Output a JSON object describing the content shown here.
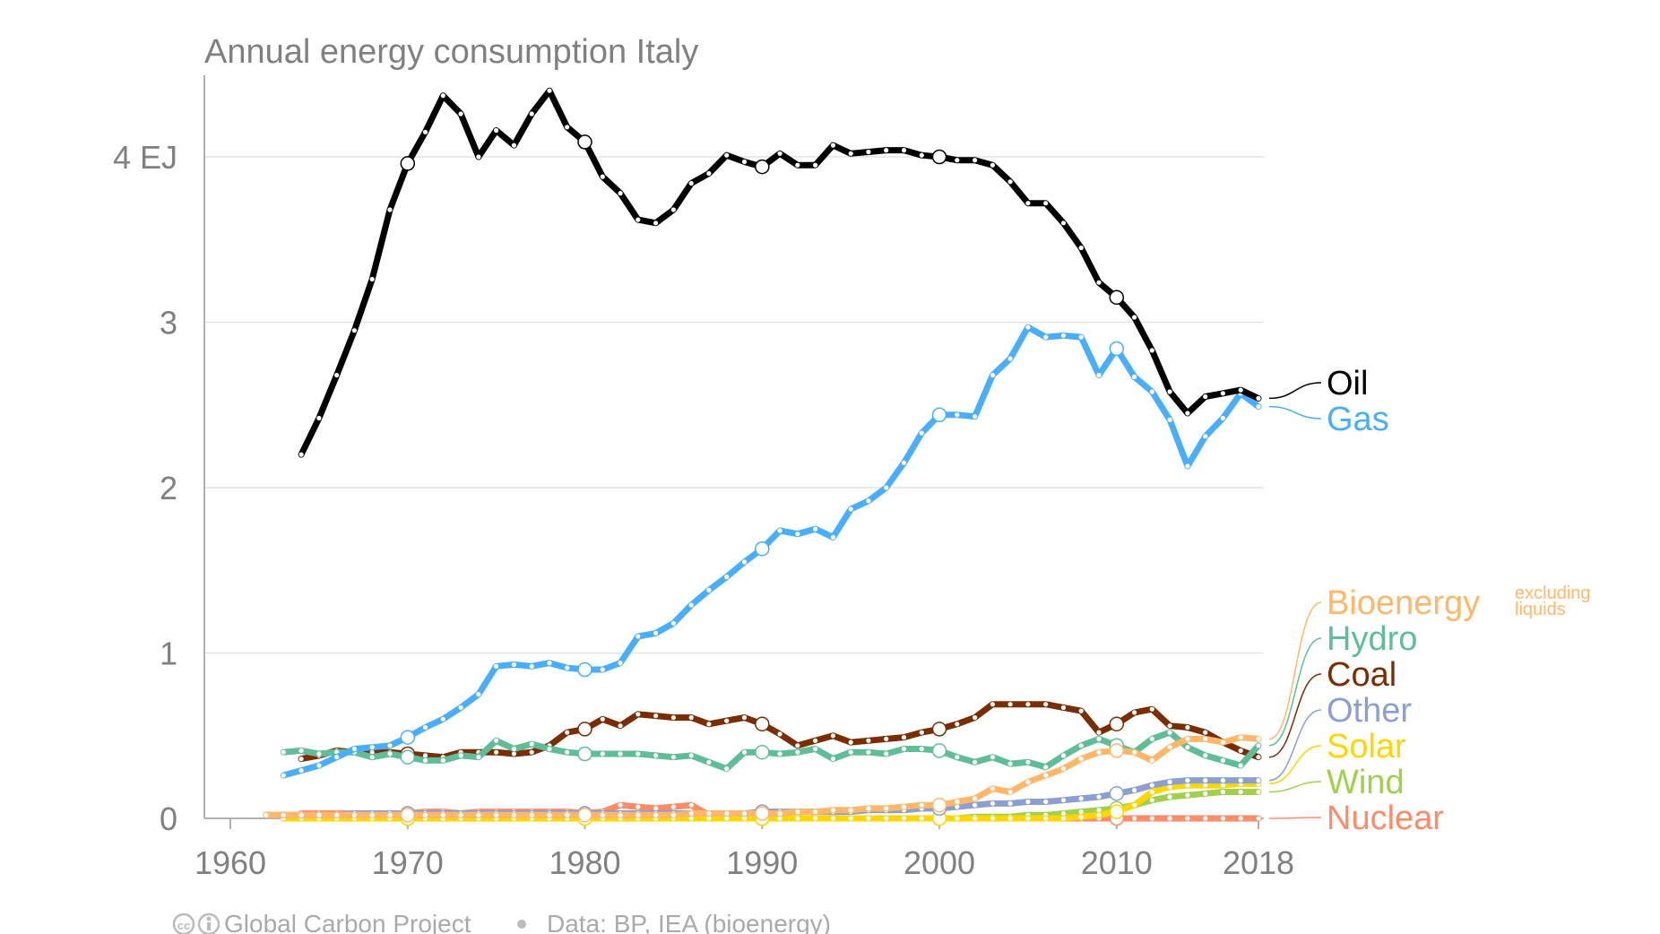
{
  "chart_data": {
    "type": "line",
    "title": "Annual energy consumption Italy",
    "x_ticks": [
      "1960",
      "1970",
      "1980",
      "1990",
      "2000",
      "2010",
      "2018"
    ],
    "y_ticks": [
      "0",
      "1",
      "2",
      "3",
      "4 EJ"
    ],
    "y_tick_values": [
      0,
      1,
      2,
      3,
      4
    ],
    "xlim": [
      1960,
      2018
    ],
    "ylim": [
      0,
      4.45
    ],
    "label_note": "excluding liquids",
    "credit": "Global Carbon Project",
    "source": "Data: BP, IEA (bioenergy)",
    "series": [
      {
        "name": "Oil",
        "color": "#000000",
        "values": [
          2.2,
          2.42,
          2.68,
          2.95,
          3.26,
          3.68,
          3.96,
          4.15,
          4.37,
          4.26,
          4.0,
          4.16,
          4.07,
          4.26,
          4.4,
          4.18,
          4.09,
          3.88,
          3.78,
          3.62,
          3.6,
          3.68,
          3.84,
          3.9,
          4.01,
          3.97,
          3.94,
          4.02,
          3.95,
          3.95,
          4.07,
          4.02,
          4.03,
          4.04,
          4.04,
          4.01,
          4.0,
          3.98,
          3.98,
          3.95,
          3.85,
          3.72,
          3.72,
          3.6,
          3.45,
          3.24,
          3.15,
          3.03,
          2.83,
          2.58,
          2.45,
          2.55,
          2.57,
          2.59,
          2.54
        ]
      },
      {
        "name": "Gas",
        "color": "#4aaeff",
        "values": [
          0.26,
          0.29,
          0.32,
          0.37,
          0.42,
          0.43,
          0.44,
          0.49,
          0.55,
          0.6,
          0.67,
          0.75,
          0.92,
          0.93,
          0.92,
          0.94,
          0.91,
          0.9,
          0.9,
          0.94,
          1.1,
          1.12,
          1.18,
          1.29,
          1.38,
          1.46,
          1.55,
          1.63,
          1.74,
          1.72,
          1.75,
          1.7,
          1.87,
          1.92,
          2.0,
          2.15,
          2.33,
          2.44,
          2.44,
          2.43,
          2.68,
          2.78,
          2.97,
          2.91,
          2.92,
          2.91,
          2.68,
          2.84,
          2.67,
          2.58,
          2.41,
          2.13,
          2.31,
          2.42,
          2.57,
          2.49
        ]
      },
      {
        "name": "Bioenergy",
        "color": "#ffb86b",
        "values": [
          0.02,
          0.02,
          0.02,
          0.02,
          0.02,
          0.02,
          0.02,
          0.02,
          0.02,
          0.02,
          0.02,
          0.02,
          0.02,
          0.02,
          0.02,
          0.02,
          0.02,
          0.02,
          0.02,
          0.02,
          0.02,
          0.02,
          0.02,
          0.02,
          0.03,
          0.03,
          0.03,
          0.03,
          0.03,
          0.03,
          0.04,
          0.04,
          0.05,
          0.05,
          0.06,
          0.06,
          0.07,
          0.08,
          0.08,
          0.1,
          0.12,
          0.18,
          0.16,
          0.22,
          0.26,
          0.3,
          0.36,
          0.4,
          0.41,
          0.4,
          0.35,
          0.43,
          0.48,
          0.48,
          0.46,
          0.49,
          0.48
        ]
      },
      {
        "name": "Hydro",
        "color": "#5fbd98",
        "values": [
          0.4,
          0.41,
          0.39,
          0.4,
          0.4,
          0.37,
          0.39,
          0.37,
          0.35,
          0.35,
          0.38,
          0.37,
          0.47,
          0.42,
          0.45,
          0.42,
          0.4,
          0.39,
          0.39,
          0.39,
          0.39,
          0.38,
          0.37,
          0.38,
          0.34,
          0.3,
          0.4,
          0.4,
          0.39,
          0.4,
          0.42,
          0.36,
          0.4,
          0.4,
          0.39,
          0.42,
          0.42,
          0.41,
          0.37,
          0.34,
          0.37,
          0.33,
          0.34,
          0.31,
          0.38,
          0.44,
          0.48,
          0.44,
          0.4,
          0.48,
          0.52,
          0.43,
          0.38,
          0.35,
          0.32,
          0.44
        ]
      },
      {
        "name": "Coal",
        "color": "#7a2d00",
        "values": [
          0.36,
          0.38,
          0.41,
          0.4,
          0.4,
          0.4,
          0.39,
          0.38,
          0.37,
          0.4,
          0.4,
          0.4,
          0.39,
          0.4,
          0.44,
          0.52,
          0.54,
          0.6,
          0.56,
          0.63,
          0.62,
          0.61,
          0.61,
          0.57,
          0.59,
          0.61,
          0.57,
          0.51,
          0.44,
          0.47,
          0.5,
          0.46,
          0.47,
          0.48,
          0.49,
          0.52,
          0.54,
          0.57,
          0.61,
          0.69,
          0.69,
          0.69,
          0.69,
          0.67,
          0.65,
          0.52,
          0.57,
          0.64,
          0.66,
          0.56,
          0.55,
          0.52,
          0.46,
          0.41,
          0.37
        ]
      },
      {
        "name": "Other",
        "color": "#8b9fd1",
        "values": [
          0.02,
          0.02,
          0.02,
          0.02,
          0.02,
          0.03,
          0.03,
          0.03,
          0.03,
          0.03,
          0.03,
          0.03,
          0.03,
          0.03,
          0.03,
          0.03,
          0.03,
          0.03,
          0.03,
          0.03,
          0.03,
          0.03,
          0.03,
          0.03,
          0.03,
          0.03,
          0.03,
          0.03,
          0.04,
          0.04,
          0.04,
          0.04,
          0.04,
          0.04,
          0.05,
          0.05,
          0.05,
          0.06,
          0.06,
          0.07,
          0.08,
          0.09,
          0.09,
          0.1,
          0.1,
          0.11,
          0.12,
          0.13,
          0.15,
          0.17,
          0.2,
          0.22,
          0.23,
          0.23,
          0.23,
          0.23,
          0.23
        ]
      },
      {
        "name": "Solar",
        "color": "#ffd700",
        "values": [
          0,
          0,
          0,
          0,
          0,
          0,
          0,
          0,
          0,
          0,
          0,
          0,
          0,
          0,
          0,
          0,
          0,
          0,
          0,
          0,
          0,
          0,
          0,
          0,
          0,
          0,
          0,
          0,
          0,
          0,
          0,
          0,
          0,
          0,
          0,
          0,
          0,
          0,
          0,
          0,
          0,
          0,
          0,
          0,
          0,
          0.01,
          0.02,
          0.04,
          0.08,
          0.16,
          0.19,
          0.2,
          0.2,
          0.2,
          0.21,
          0.21
        ]
      },
      {
        "name": "Wind",
        "color": "#a0d04e",
        "values": [
          0,
          0,
          0,
          0,
          0,
          0,
          0,
          0,
          0,
          0,
          0,
          0,
          0,
          0,
          0,
          0,
          0,
          0,
          0,
          0,
          0,
          0,
          0,
          0,
          0,
          0,
          0,
          0,
          0,
          0,
          0,
          0,
          0,
          0,
          0,
          0,
          0,
          0,
          0,
          0.01,
          0.01,
          0.01,
          0.02,
          0.02,
          0.03,
          0.04,
          0.05,
          0.06,
          0.08,
          0.11,
          0.13,
          0.14,
          0.15,
          0.16,
          0.16,
          0.16
        ]
      },
      {
        "name": "Nuclear",
        "color": "#ff8c69",
        "values": [
          0.03,
          0.03,
          0.03,
          0.03,
          0.03,
          0.03,
          0.03,
          0.04,
          0.04,
          0.03,
          0.04,
          0.04,
          0.04,
          0.04,
          0.04,
          0.04,
          0.03,
          0.04,
          0.08,
          0.07,
          0.06,
          0.07,
          0.08,
          0.02,
          0,
          0,
          0,
          0,
          0,
          0,
          0,
          0,
          0,
          0,
          0,
          0,
          0,
          0,
          0,
          0,
          0,
          0,
          0,
          0,
          0,
          0,
          0,
          0,
          0,
          0,
          0,
          0,
          0,
          0,
          0
        ]
      }
    ]
  }
}
